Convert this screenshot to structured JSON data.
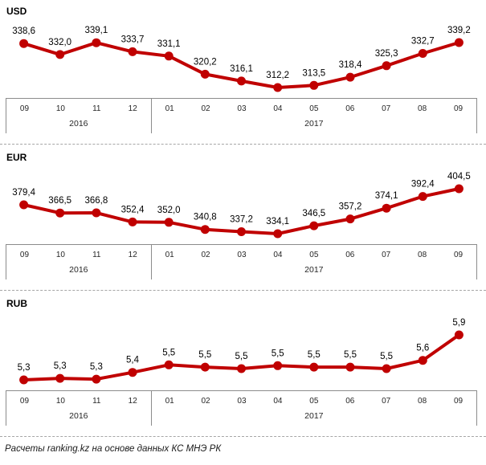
{
  "colors": {
    "line": "#c00000",
    "marker": "#c00000",
    "data_label": "#000000",
    "axis_border": "#8c8c8c",
    "dashed_divider": "#a6a6a6"
  },
  "footer": {
    "source_note": "Расчеты ranking.kz на основе данных КС МНЭ РК"
  },
  "chart_data": [
    {
      "type": "line",
      "title": "USD",
      "categories": [
        "09",
        "10",
        "11",
        "12",
        "01",
        "02",
        "03",
        "04",
        "05",
        "06",
        "07",
        "08",
        "09"
      ],
      "values": [
        338.6,
        332.0,
        339.1,
        333.7,
        331.1,
        320.2,
        316.1,
        312.2,
        313.5,
        318.4,
        325.3,
        332.7,
        339.2
      ],
      "labels": [
        "338,6",
        "332,0",
        "339,1",
        "333,7",
        "331,1",
        "320,2",
        "316,1",
        "312,2",
        "313,5",
        "318,4",
        "325,3",
        "332,7",
        "339,2"
      ],
      "x_groups": [
        {
          "year": "2016",
          "months": [
            "09",
            "10",
            "11",
            "12"
          ]
        },
        {
          "year": "2017",
          "months": [
            "01",
            "02",
            "03",
            "04",
            "05",
            "06",
            "07",
            "08",
            "09"
          ]
        }
      ],
      "ylim": [
        312.2,
        339.2
      ],
      "grid": false,
      "legend": "none"
    },
    {
      "type": "line",
      "title": "EUR",
      "categories": [
        "09",
        "10",
        "11",
        "12",
        "01",
        "02",
        "03",
        "04",
        "05",
        "06",
        "07",
        "08",
        "09"
      ],
      "values": [
        379.4,
        366.5,
        366.8,
        352.4,
        352.0,
        340.8,
        337.2,
        334.1,
        346.5,
        357.2,
        374.1,
        392.4,
        404.5
      ],
      "labels": [
        "379,4",
        "366,5",
        "366,8",
        "352,4",
        "352,0",
        "340,8",
        "337,2",
        "334,1",
        "346,5",
        "357,2",
        "374,1",
        "392,4",
        "404,5"
      ],
      "x_groups": [
        {
          "year": "2016",
          "months": [
            "09",
            "10",
            "11",
            "12"
          ]
        },
        {
          "year": "2017",
          "months": [
            "01",
            "02",
            "03",
            "04",
            "05",
            "06",
            "07",
            "08",
            "09"
          ]
        }
      ],
      "ylim": [
        334.1,
        404.5
      ],
      "grid": false,
      "legend": "none"
    },
    {
      "type": "line",
      "title": "RUB",
      "categories": [
        "09",
        "10",
        "11",
        "12",
        "01",
        "02",
        "03",
        "04",
        "05",
        "06",
        "07",
        "08",
        "09"
      ],
      "values": [
        5.3,
        5.32,
        5.31,
        5.4,
        5.5,
        5.47,
        5.45,
        5.49,
        5.47,
        5.47,
        5.45,
        5.56,
        5.9
      ],
      "labels": [
        "5,3",
        "5,3",
        "5,3",
        "5,4",
        "5,5",
        "5,5",
        "5,5",
        "5,5",
        "5,5",
        "5,5",
        "5,5",
        "5,6",
        "5,9"
      ],
      "x_groups": [
        {
          "year": "2016",
          "months": [
            "09",
            "10",
            "11",
            "12"
          ]
        },
        {
          "year": "2017",
          "months": [
            "01",
            "02",
            "03",
            "04",
            "05",
            "06",
            "07",
            "08",
            "09"
          ]
        }
      ],
      "ylim": [
        5.3,
        5.9
      ],
      "grid": false,
      "legend": "none"
    }
  ]
}
